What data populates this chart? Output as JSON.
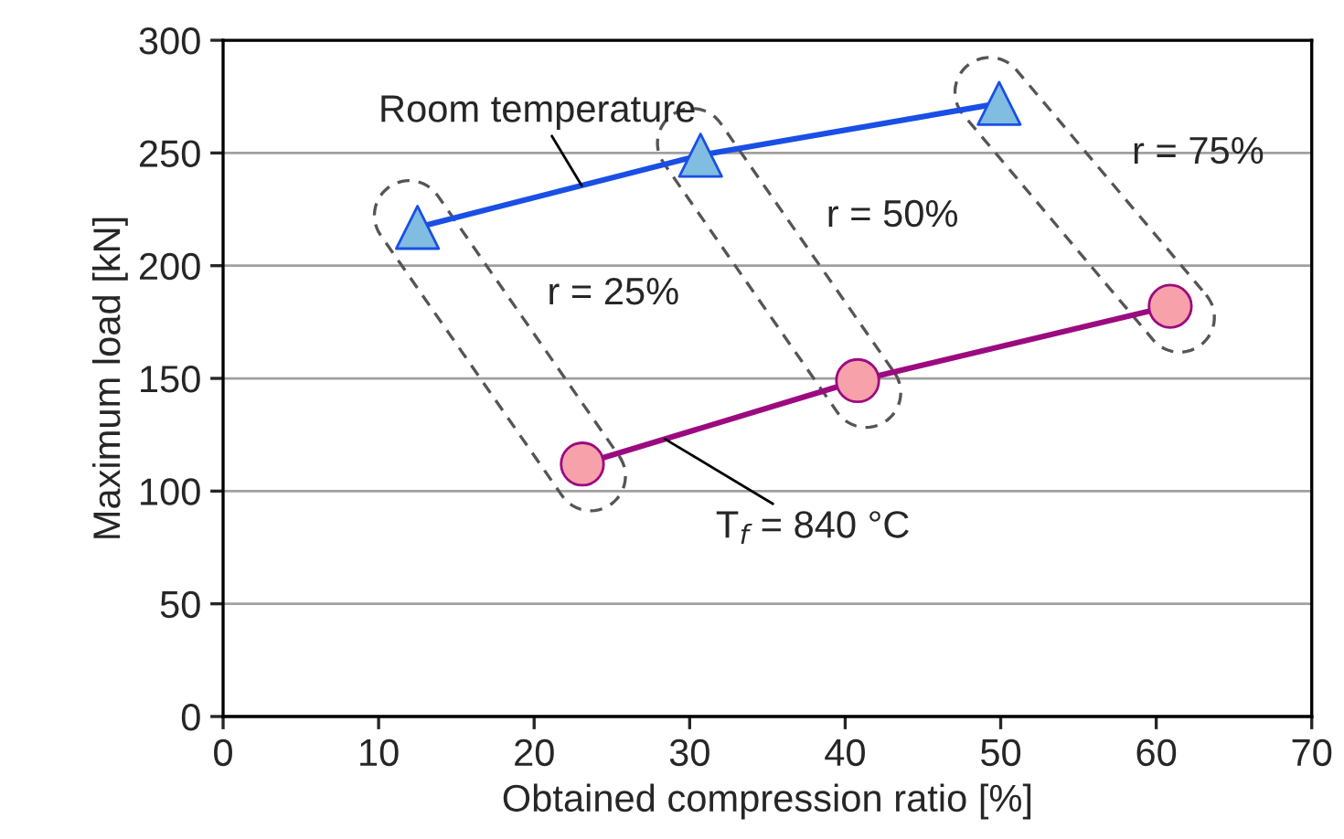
{
  "chart_data": {
    "type": "line",
    "xlabel": "Obtained compression ratio [%]",
    "ylabel": "Maximum load [kN]",
    "xlim": [
      0,
      70
    ],
    "xticks": [
      0,
      10,
      20,
      30,
      40,
      50,
      60,
      70
    ],
    "ylim": [
      0,
      300
    ],
    "yticks": [
      0,
      50,
      100,
      150,
      200,
      250,
      300
    ],
    "grid": "y",
    "series": [
      {
        "name": "Room temperature",
        "color": "#1a4fe6",
        "marker": "triangle",
        "colors": [
          "#80bde0",
          "#80bde0",
          "#80bde0"
        ],
        "x": [
          12.5,
          30.7,
          49.9
        ],
        "values": [
          217,
          249,
          272
        ]
      },
      {
        "name": "T$_{f}$ = 840 °C",
        "color": "#9c0a80",
        "marker": "circle",
        "colors": [
          "#f7a1aa",
          "#f7a1aa",
          "#f7a1aa"
        ],
        "x": [
          23.1,
          40.8,
          60.9
        ],
        "values": [
          112,
          149,
          182
        ]
      }
    ],
    "annotations": [
      "r = 25%",
      "r = 50%",
      "r = 75%"
    ]
  }
}
